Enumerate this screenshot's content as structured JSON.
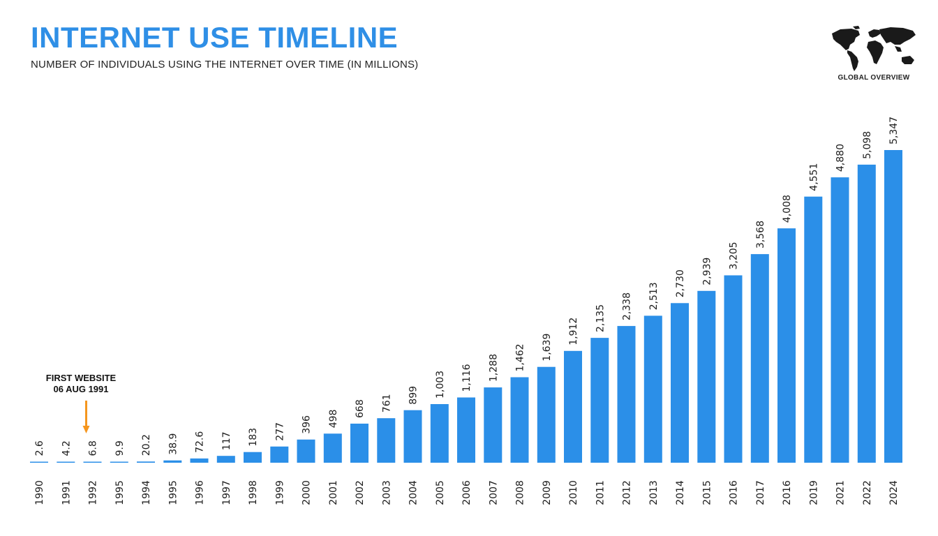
{
  "header": {
    "title": "INTERNET USE TIMELINE",
    "subtitle": "NUMBER OF INDIVIDUALS USING THE INTERNET OVER TIME (IN MILLIONS)"
  },
  "logo": {
    "icon": "world-map-icon",
    "caption": "GLOBAL OVERVIEW"
  },
  "chart_data": {
    "type": "bar",
    "title": "INTERNET USE TIMELINE",
    "subtitle": "NUMBER OF INDIVIDUALS USING THE INTERNET OVER TIME (IN MILLIONS)",
    "xlabel": "",
    "ylabel": "",
    "categories": [
      "1990",
      "1991",
      "1992",
      "1995",
      "1994",
      "1995",
      "1996",
      "1997",
      "1998",
      "1999",
      "2000",
      "2001",
      "2002",
      "2003",
      "2004",
      "2005",
      "2006",
      "2007",
      "2008",
      "2009",
      "2010",
      "2011",
      "2012",
      "2013",
      "2014",
      "2015",
      "2016",
      "2017",
      "2016",
      "2019",
      "2021",
      "2022",
      "2024"
    ],
    "values": [
      2.6,
      4.2,
      6.8,
      9.9,
      20.2,
      38.9,
      72.6,
      117,
      183,
      277,
      396,
      498,
      668,
      761,
      899,
      1003,
      1116,
      1288,
      1462,
      1639,
      1912,
      2135,
      2338,
      2513,
      2730,
      2939,
      3205,
      3568,
      4008,
      4551,
      4880,
      5098,
      5347
    ],
    "value_labels": [
      "2.6",
      "4.2",
      "6.8",
      "9.9",
      "20.2",
      "38.9",
      "72.6",
      "117",
      "183",
      "277",
      "396",
      "498",
      "668",
      "761",
      "899",
      "1,003",
      "1,116",
      "1,288",
      "1,462",
      "1,639",
      "1,912",
      "2,135",
      "2,338",
      "2,513",
      "2,730",
      "2,939",
      "3,205",
      "3,568",
      "4,008",
      "4,551",
      "4,880",
      "5,098",
      "5,347"
    ],
    "ylim": [
      0,
      5347
    ],
    "grid": false,
    "color": "#2b8fe8",
    "annotation": {
      "lines": [
        "FIRST WEBSITE",
        "06 AUG 1991"
      ],
      "category": "1992",
      "arrow_color": "#f5961e"
    }
  }
}
